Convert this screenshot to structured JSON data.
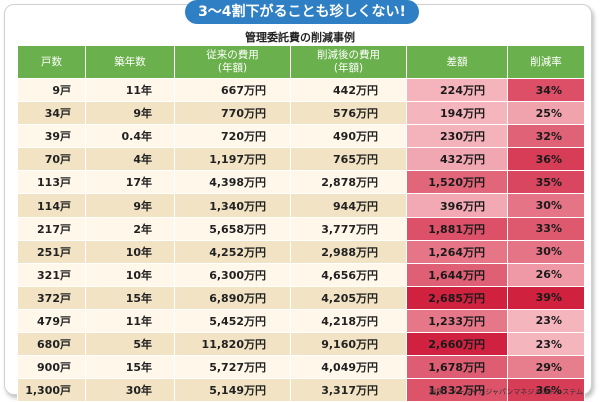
{
  "banner": "3〜4割下がることも珍しくない!",
  "subtitle": "管理委託費の削減事例",
  "headers": [
    "戸数",
    "築年数",
    "従来の費用\n(年額)",
    "削減後の費用\n(年額)",
    "差額",
    "削減率"
  ],
  "rows": [
    {
      "units": "9戸",
      "age": "11年",
      "before": "667万円",
      "after": "442万円",
      "diff": "224万円",
      "rate": "34%"
    },
    {
      "units": "34戸",
      "age": "9年",
      "before": "770万円",
      "after": "576万円",
      "diff": "194万円",
      "rate": "25%"
    },
    {
      "units": "39戸",
      "age": "0.4年",
      "before": "720万円",
      "after": "490万円",
      "diff": "230万円",
      "rate": "32%"
    },
    {
      "units": "70戸",
      "age": "4年",
      "before": "1,197万円",
      "after": "765万円",
      "diff": "432万円",
      "rate": "36%"
    },
    {
      "units": "113戸",
      "age": "17年",
      "before": "4,398万円",
      "after": "2,878万円",
      "diff": "1,520万円",
      "rate": "35%"
    },
    {
      "units": "114戸",
      "age": "9年",
      "before": "1,340万円",
      "after": "944万円",
      "diff": "396万円",
      "rate": "30%"
    },
    {
      "units": "217戸",
      "age": "2年",
      "before": "5,658万円",
      "after": "3,777万円",
      "diff": "1,881万円",
      "rate": "33%"
    },
    {
      "units": "251戸",
      "age": "10年",
      "before": "4,252万円",
      "after": "2,988万円",
      "diff": "1,264万円",
      "rate": "30%"
    },
    {
      "units": "321戸",
      "age": "10年",
      "before": "6,300万円",
      "after": "4,656万円",
      "diff": "1,644万円",
      "rate": "26%"
    },
    {
      "units": "372戸",
      "age": "15年",
      "before": "6,890万円",
      "after": "4,205万円",
      "diff": "2,685万円",
      "rate": "39%"
    },
    {
      "units": "479戸",
      "age": "11年",
      "before": "5,452万円",
      "after": "4,218万円",
      "diff": "1,233万円",
      "rate": "23%"
    },
    {
      "units": "680戸",
      "age": "5年",
      "before": "11,820万円",
      "after": "9,160万円",
      "diff": "2,660万円",
      "rate": "23%"
    },
    {
      "units": "900戸",
      "age": "15年",
      "before": "5,727万円",
      "after": "4,049万円",
      "diff": "1,678万円",
      "rate": "29%"
    },
    {
      "units": "1,300戸",
      "age": "30年",
      "before": "5,149万円",
      "after": "3,317万円",
      "diff": "1,832万円",
      "rate": "36%"
    }
  ],
  "source": "出所：ソーシャルジャパンマネジメントシステム",
  "colors": {
    "banner": "#2e7fc3",
    "header": "#6ab04c",
    "row_light": "#fff8ea",
    "row_dark": "#f1e3c4",
    "heat_light": "#f5b5bd",
    "heat_dark": "#d0213f"
  }
}
